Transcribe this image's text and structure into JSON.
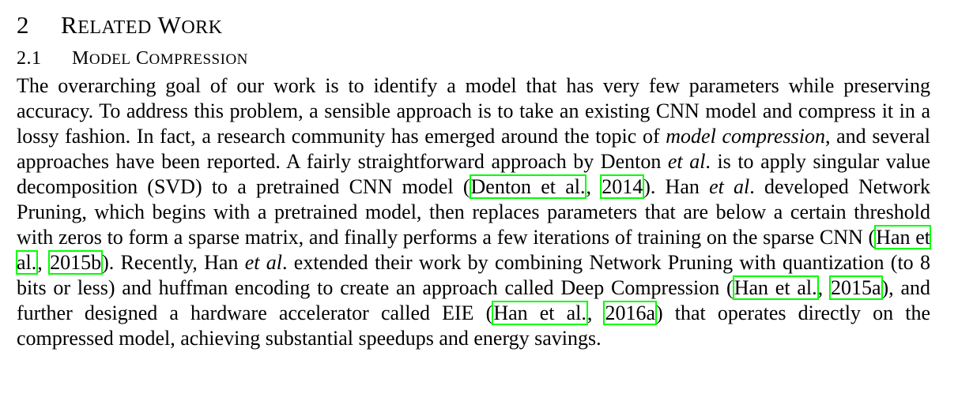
{
  "section": {
    "number": "2",
    "title_first_caps": [
      "R",
      "W"
    ],
    "title_rest": [
      "ELATED",
      "ORK"
    ]
  },
  "subsection": {
    "number": "2.1",
    "title_first_caps": [
      "M",
      "C"
    ],
    "title_rest": [
      "ODEL",
      "OMPRESSION"
    ]
  },
  "paragraph": {
    "seg01": "The overarching goal of our work is to identify a model that has very few parameters while preserving accuracy. To address this problem, a sensible approach is to take an existing CNN model and compress it in a lossy fashion. In fact, a research community has emerged around the topic of ",
    "seg02_italic": "model compression",
    "seg03": ", and several approaches have been reported. A fairly straightforward approach by Denton ",
    "seg04_italic": "et al",
    "seg05": ". is to apply singular value decomposition (SVD) to a pretrained CNN model (",
    "cite1_authors": "Denton et al.",
    "cite1_sep": ", ",
    "cite1_year": "2014",
    "seg06": "). Han ",
    "seg07_italic": "et al",
    "seg08": ". developed Network Pruning, which begins with a pretrained model, then replaces parameters that are below a certain threshold with zeros to form a sparse matrix, and finally performs a few iterations of training on the sparse CNN (",
    "cite2_authors": "Han et al.",
    "cite2_sep": ", ",
    "cite2_year": "2015b",
    "seg09": "). Recently, Han ",
    "seg10_italic": "et al",
    "seg11": ". extended their work by combining Network Pruning with quantization (to 8 bits or less) and huffman encoding to create an approach called Deep Compression (",
    "cite3_authors": "Han et al.",
    "cite3_sep": ", ",
    "cite3_year": "2015a",
    "seg12": "), and further designed a hardware accelerator called EIE (",
    "cite4_authors": "Han et al.",
    "cite4_sep": ", ",
    "cite4_year": "2016a",
    "seg13": ") that operates directly on the compressed model, achieving substantial speedups and energy savings."
  },
  "colors": {
    "text": "#000000",
    "citation_box": "#00ff00",
    "background": "#ffffff"
  }
}
